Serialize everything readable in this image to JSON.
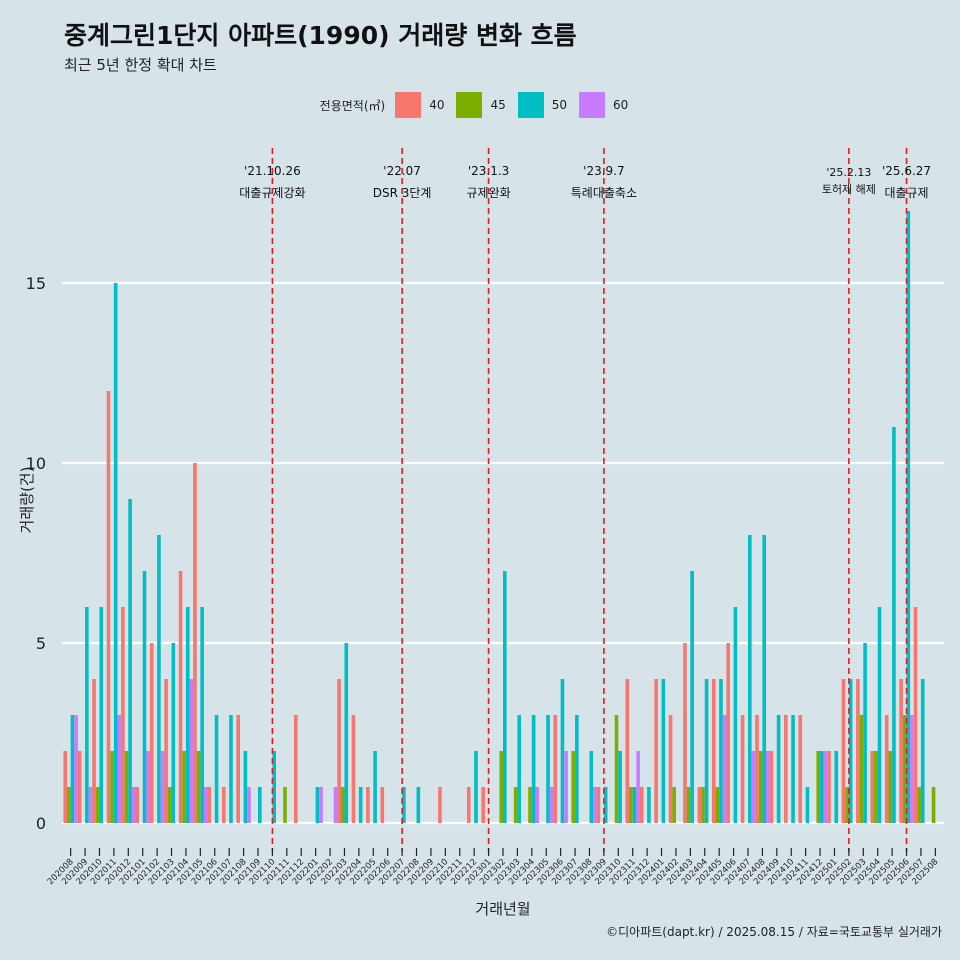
{
  "header": {
    "title": "중계그린1단지 아파트(1990) 거래량 변화 흐름",
    "subtitle": "최근 5년 한정 확대 차트"
  },
  "legend": {
    "title": "전용면적(㎡)",
    "items": [
      {
        "label": "40",
        "color": "#f8766d"
      },
      {
        "label": "45",
        "color": "#7cae00"
      },
      {
        "label": "50",
        "color": "#00bfc4"
      },
      {
        "label": "60",
        "color": "#c77cff"
      }
    ]
  },
  "caption": "©디아파트(dapt.kr) / 2025.08.15 / 자료=국토교통부 실거래가",
  "chart_data": {
    "type": "bar",
    "title": "중계그린1단지 아파트(1990) 거래량 변화 흐름",
    "subtitle": "최근 5년 한정 확대 차트",
    "xlabel": "거래년월",
    "ylabel": "거래량(건)",
    "ylim": [
      0,
      17.5
    ],
    "yticks": [
      0,
      5,
      10,
      15
    ],
    "grid": true,
    "legend_position": "top",
    "categories": [
      "202008",
      "202009",
      "202010",
      "202011",
      "202012",
      "202101",
      "202102",
      "202103",
      "202104",
      "202105",
      "202106",
      "202107",
      "202108",
      "202109",
      "202110",
      "202111",
      "202112",
      "202201",
      "202202",
      "202203",
      "202204",
      "202205",
      "202206",
      "202207",
      "202208",
      "202209",
      "202210",
      "202211",
      "202212",
      "202301",
      "202302",
      "202303",
      "202304",
      "202305",
      "202306",
      "202307",
      "202308",
      "202309",
      "202310",
      "202311",
      "202312",
      "202401",
      "202402",
      "202403",
      "202404",
      "202405",
      "202406",
      "202407",
      "202408",
      "202409",
      "202410",
      "202411",
      "202412",
      "202501",
      "202502",
      "202503",
      "202504",
      "202505",
      "202506",
      "202507",
      "202508"
    ],
    "series": [
      {
        "name": "40",
        "values": [
          2,
          2,
          4,
          12,
          6,
          1,
          5,
          4,
          7,
          10,
          1,
          1,
          3,
          0,
          0,
          0,
          3,
          0,
          0,
          4,
          3,
          1,
          1,
          0,
          0,
          0,
          1,
          0,
          1,
          1,
          0,
          0,
          0,
          0,
          3,
          0,
          0,
          1,
          0,
          4,
          1,
          4,
          3,
          5,
          1,
          4,
          5,
          3,
          3,
          2,
          3,
          3,
          0,
          2,
          4,
          4,
          2,
          3,
          4,
          6,
          0
        ]
      },
      {
        "name": "45",
        "values": [
          1,
          0,
          1,
          2,
          2,
          0,
          0,
          1,
          2,
          2,
          0,
          0,
          0,
          0,
          0,
          1,
          0,
          0,
          0,
          1,
          0,
          0,
          0,
          0,
          0,
          0,
          0,
          0,
          0,
          0,
          2,
          1,
          1,
          0,
          0,
          2,
          0,
          0,
          3,
          1,
          0,
          0,
          1,
          1,
          1,
          1,
          0,
          0,
          2,
          0,
          0,
          0,
          2,
          0,
          1,
          3,
          2,
          2,
          3,
          1,
          1
        ]
      },
      {
        "name": "50",
        "values": [
          3,
          6,
          6,
          15,
          9,
          7,
          8,
          5,
          6,
          6,
          3,
          3,
          2,
          1,
          2,
          0,
          0,
          1,
          0,
          5,
          1,
          2,
          0,
          1,
          1,
          0,
          0,
          0,
          2,
          0,
          7,
          3,
          3,
          3,
          4,
          3,
          2,
          1,
          2,
          1,
          1,
          4,
          0,
          7,
          4,
          4,
          6,
          8,
          8,
          3,
          3,
          1,
          2,
          2,
          4,
          5,
          6,
          11,
          17,
          4,
          0
        ]
      },
      {
        "name": "60",
        "values": [
          3,
          1,
          0,
          3,
          1,
          2,
          2,
          0,
          4,
          1,
          0,
          0,
          1,
          0,
          0,
          0,
          0,
          1,
          1,
          0,
          0,
          0,
          0,
          0,
          0,
          0,
          0,
          0,
          0,
          0,
          0,
          0,
          1,
          1,
          2,
          0,
          1,
          0,
          0,
          2,
          0,
          0,
          0,
          0,
          0,
          3,
          0,
          2,
          2,
          0,
          0,
          0,
          2,
          0,
          0,
          0,
          0,
          0,
          3,
          0,
          0
        ]
      }
    ],
    "annotations": [
      {
        "x": "202110",
        "line1": "'21.10.26",
        "line2": "대출규제강화"
      },
      {
        "x": "202207",
        "line1": "'22.07",
        "line2": "DSR 3단계"
      },
      {
        "x": "202301",
        "line1": "'23.1.3",
        "line2": "규제완화"
      },
      {
        "x": "202309",
        "line1": "'23.9.7",
        "line2": "특례대출축소"
      },
      {
        "x": "202502",
        "line1": "'25.2.13",
        "line2": "토허제 해제"
      },
      {
        "x": "202506",
        "line1": "'25.6.27",
        "line2": "대출규제"
      }
    ]
  }
}
